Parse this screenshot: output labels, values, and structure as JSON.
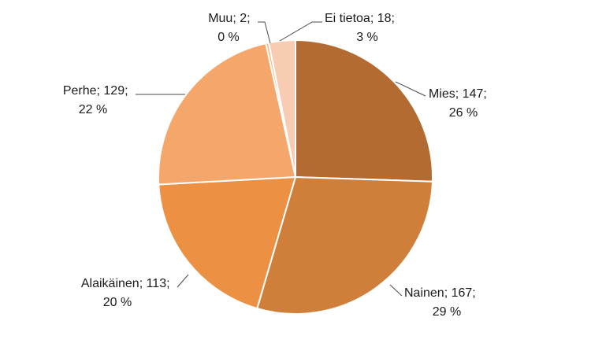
{
  "chart_data": {
    "type": "pie",
    "title": "",
    "slices": [
      {
        "label": "Mies",
        "value": 147,
        "percent": "26 %",
        "color": "#b46b32"
      },
      {
        "label": "Nainen",
        "value": 167,
        "percent": "29 %",
        "color": "#d07f3b"
      },
      {
        "label": "Alaikäinen",
        "value": 113,
        "percent": "20 %",
        "color": "#ec9043"
      },
      {
        "label": "Perhe",
        "value": 129,
        "percent": "22 %",
        "color": "#f4a66b"
      },
      {
        "label": "Muu",
        "value": 2,
        "percent": "0 %",
        "color": "#f6b983"
      },
      {
        "label": "Ei tietoa",
        "value": 18,
        "percent": "3 %",
        "color": "#f8ccb3"
      }
    ],
    "data_labels": [
      {
        "line1": "Mies; 147;",
        "line2": "26 %"
      },
      {
        "line1": "Nainen; 167;",
        "line2": "29 %"
      },
      {
        "line1": "Alaikäinen; 113;",
        "line2": "20 %"
      },
      {
        "line1": "Perhe; 129;",
        "line2": "22 %"
      },
      {
        "line1": "Muu; 2;",
        "line2": "0 %"
      },
      {
        "line1": "Ei tietoa; 18;",
        "line2": "3 %"
      }
    ],
    "start_angle": "12 o'clock",
    "direction": "clockwise",
    "slice_border": "#ffffff",
    "legend": "none"
  }
}
